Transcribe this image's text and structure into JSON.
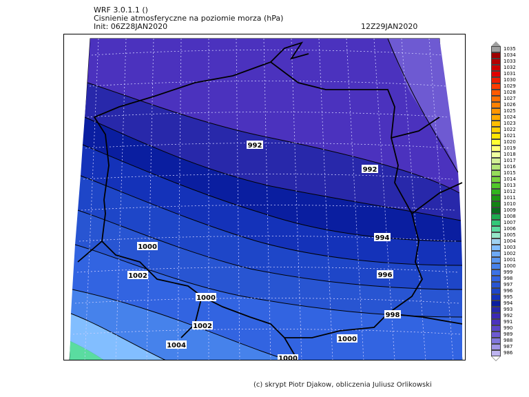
{
  "header": {
    "model": "WRF 3.0.1.1 ()",
    "title": "Cisnienie atmosferyczne na poziomie morza (hPa)",
    "init": "Init: 06Z28JAN2020",
    "valid": "12Z29JAN2020"
  },
  "footer": {
    "credit": "(c) skrypt Piotr Djakow, obliczenia Juliusz Orlikowski"
  },
  "map": {
    "isobar_labels": [
      {
        "id": "l992a",
        "text": "992"
      },
      {
        "id": "l992b",
        "text": "992"
      },
      {
        "id": "l994",
        "text": "994"
      },
      {
        "id": "l996",
        "text": "996"
      },
      {
        "id": "l998",
        "text": "998"
      },
      {
        "id": "l1000a",
        "text": "1000"
      },
      {
        "id": "l1000b",
        "text": "1000"
      },
      {
        "id": "l1000c",
        "text": "1000"
      },
      {
        "id": "l1000d",
        "text": "1000"
      },
      {
        "id": "l1002a",
        "text": "1002"
      },
      {
        "id": "l1002b",
        "text": "1002"
      },
      {
        "id": "l1004",
        "text": "1004"
      }
    ]
  },
  "legend": {
    "top_arrow_color": "#a0a0a0",
    "bottom_arrow_color": "#ffffff",
    "items": [
      {
        "label": "1035",
        "color": "#a0a0a0"
      },
      {
        "label": "1034",
        "color": "#a00000"
      },
      {
        "label": "1033",
        "color": "#b40000"
      },
      {
        "label": "1032",
        "color": "#cc0000"
      },
      {
        "label": "1031",
        "color": "#e00000"
      },
      {
        "label": "1030",
        "color": "#f01e00"
      },
      {
        "label": "1029",
        "color": "#ff3c00"
      },
      {
        "label": "1028",
        "color": "#ff5a00"
      },
      {
        "label": "1027",
        "color": "#ff7000"
      },
      {
        "label": "1026",
        "color": "#ff8200"
      },
      {
        "label": "1025",
        "color": "#ff9600"
      },
      {
        "label": "1024",
        "color": "#ffaa00"
      },
      {
        "label": "1023",
        "color": "#ffbe00"
      },
      {
        "label": "1022",
        "color": "#ffd200"
      },
      {
        "label": "1021",
        "color": "#ffe600"
      },
      {
        "label": "1020",
        "color": "#ffff32"
      },
      {
        "label": "1019",
        "color": "#ffff78"
      },
      {
        "label": "1018",
        "color": "#f0ffa0"
      },
      {
        "label": "1017",
        "color": "#d2f096"
      },
      {
        "label": "1016",
        "color": "#b4e678"
      },
      {
        "label": "1015",
        "color": "#96dc5a"
      },
      {
        "label": "1014",
        "color": "#78d23c"
      },
      {
        "label": "1013",
        "color": "#50c828"
      },
      {
        "label": "1012",
        "color": "#32b41e"
      },
      {
        "label": "1011",
        "color": "#1e9614"
      },
      {
        "label": "1010",
        "color": "#148214"
      },
      {
        "label": "1009",
        "color": "#0a6e1e"
      },
      {
        "label": "1008",
        "color": "#1eaa50"
      },
      {
        "label": "1007",
        "color": "#32c878"
      },
      {
        "label": "1006",
        "color": "#5adca0"
      },
      {
        "label": "1005",
        "color": "#96e6c8"
      },
      {
        "label": "1004",
        "color": "#a0d2f0"
      },
      {
        "label": "1003",
        "color": "#82beff"
      },
      {
        "label": "1002",
        "color": "#6eaaf5"
      },
      {
        "label": "1001",
        "color": "#5a96f0"
      },
      {
        "label": "1000",
        "color": "#4682eb"
      },
      {
        "label": "999",
        "color": "#3c73e6"
      },
      {
        "label": "998",
        "color": "#3264e1"
      },
      {
        "label": "997",
        "color": "#2855d2"
      },
      {
        "label": "996",
        "color": "#1e46c8"
      },
      {
        "label": "995",
        "color": "#1432b9"
      },
      {
        "label": "994",
        "color": "#0a1ea0"
      },
      {
        "label": "993",
        "color": "#2828aa"
      },
      {
        "label": "992",
        "color": "#3c28b4"
      },
      {
        "label": "991",
        "color": "#4b32be"
      },
      {
        "label": "990",
        "color": "#5a46c8"
      },
      {
        "label": "989",
        "color": "#6e5ad2"
      },
      {
        "label": "988",
        "color": "#8278dc"
      },
      {
        "label": "987",
        "color": "#a096e6"
      },
      {
        "label": "986",
        "color": "#beb4f0"
      }
    ]
  }
}
